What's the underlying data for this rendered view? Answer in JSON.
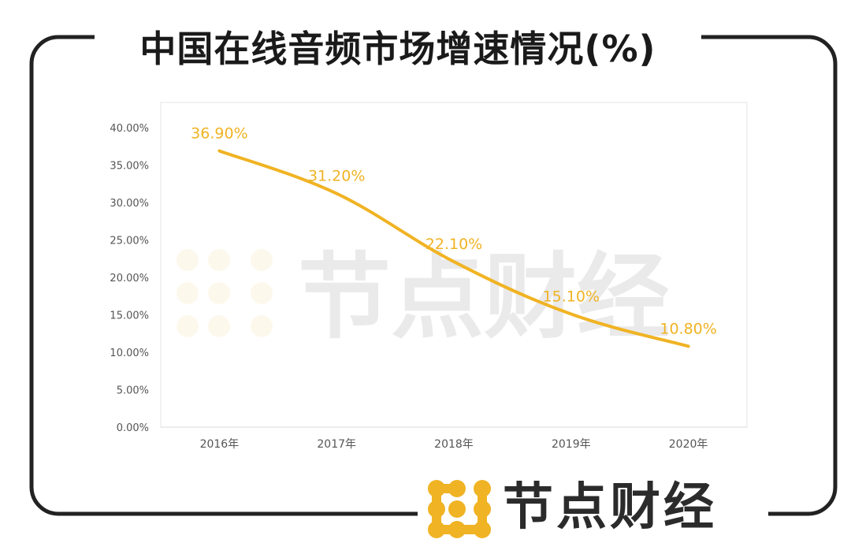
{
  "title": "中国在线音频市场增速情况(%)",
  "brand": {
    "name": "节点财经",
    "accent_color": "#F0B323",
    "text_color": "#2b2b2b",
    "icon": "node-logo-icon"
  },
  "watermark": "节点财经",
  "chart_data": {
    "type": "line",
    "categories": [
      "2016年",
      "2017年",
      "2018年",
      "2019年",
      "2020年"
    ],
    "series": [
      {
        "values": [
          36.9,
          31.2,
          22.1,
          15.1,
          10.8
        ],
        "data_labels": [
          "36.90%",
          "31.20%",
          "22.10%",
          "15.10%",
          "10.80%"
        ],
        "color": "#F0B323"
      }
    ],
    "y_ticks": [
      "0.00%",
      "5.00%",
      "10.00%",
      "15.00%",
      "20.00%",
      "25.00%",
      "30.00%",
      "35.00%",
      "40.00%"
    ],
    "ylim": [
      0,
      40
    ],
    "grid": false,
    "smooth": true
  }
}
